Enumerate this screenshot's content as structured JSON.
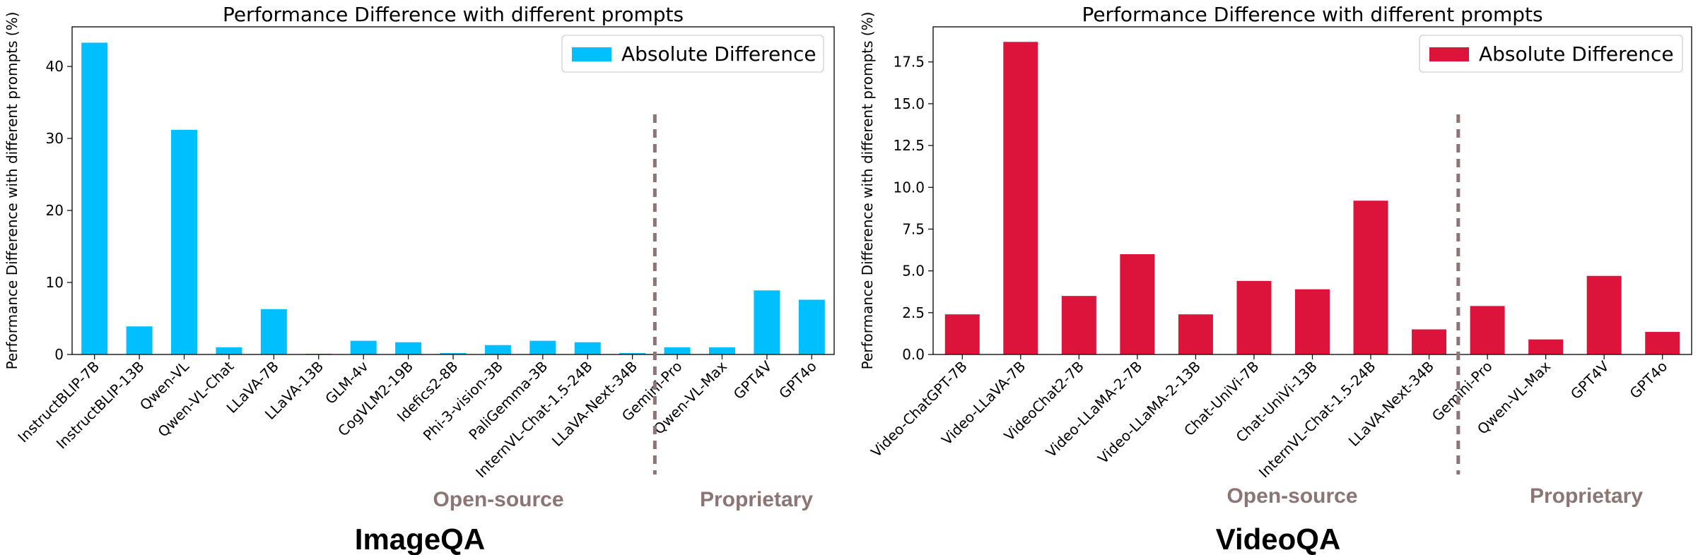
{
  "chart_data": [
    {
      "type": "bar",
      "title": "Performance Difference with different prompts",
      "ylabel": "Performance Difference with different prompts (%)",
      "panel_label": "ImageQA",
      "categories": [
        "InstructBLIP-7B",
        "InstructBLIP-13B",
        "Qwen-VL",
        "Qwen-VL-Chat",
        "LLaVA-7B",
        "LLaVA-13B",
        "GLM-4v",
        "CogVLM2-19B",
        "Idefics2-8B",
        "Phi-3-vision-3B",
        "PaliGemma-3B",
        "InternVL-Chat-1.5-24B",
        "LLaVA-Next-34B",
        "Gemini-Pro",
        "Qwen-VL-Max",
        "GPT4V",
        "GPT4o"
      ],
      "series": [
        {
          "name": "Absolute Difference",
          "values": [
            43.3,
            3.9,
            31.2,
            1.0,
            6.3,
            0.1,
            1.9,
            1.7,
            0.2,
            1.3,
            1.9,
            1.7,
            0.2,
            1.0,
            1.0,
            8.9,
            7.6
          ]
        }
      ],
      "ylim": [
        0,
        45.5
      ],
      "yticks": [
        0,
        10,
        20,
        30,
        40
      ],
      "color": "#00bfff",
      "legend": "top-right",
      "grid": false,
      "divider_after_index": 12,
      "groups": {
        "left": "Open-source",
        "right": "Proprietary"
      }
    },
    {
      "type": "bar",
      "title": "Performance Difference with different prompts",
      "ylabel": "Performance Difference with different prompts (%)",
      "panel_label": "VideoQA",
      "categories": [
        "Video-ChatGPT-7B",
        "Video-LLaVA-7B",
        "VideoChat2-7B",
        "Video-LLaMA-2-7B",
        "Video-LLaMA-2-13B",
        "Chat-UniVi-7B",
        "Chat-UniVi-13B",
        "InternVL-Chat-1.5-24B",
        "LLaVA-Next-34B",
        "Gemini-Pro",
        "Qwen-VL-Max",
        "GPT4V",
        "GPT4o"
      ],
      "series": [
        {
          "name": "Absolute Difference",
          "values": [
            2.4,
            18.7,
            3.5,
            6.0,
            2.4,
            4.4,
            3.9,
            9.2,
            1.5,
            2.9,
            0.9,
            4.7,
            1.35
          ]
        }
      ],
      "ylim": [
        0,
        19.6
      ],
      "yticks": [
        0.0,
        2.5,
        5.0,
        7.5,
        10.0,
        12.5,
        15.0,
        17.5
      ],
      "color": "#dc143c",
      "legend": "top-right",
      "grid": false,
      "divider_after_index": 8,
      "groups": {
        "left": "Open-source",
        "right": "Proprietary"
      }
    }
  ]
}
